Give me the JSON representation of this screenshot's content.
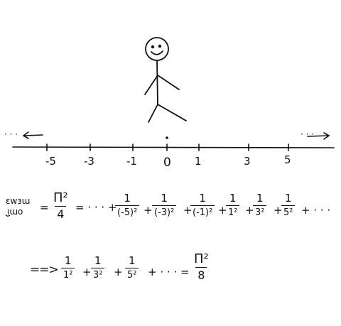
{
  "number_line": {
    "ticks": [
      "-5",
      "-3",
      "-1",
      "0",
      "1",
      "3",
      "5"
    ],
    "left_dots": "· · ·",
    "right_dots": "· · ·"
  },
  "equation1": {
    "label_line1": "ɛwɜɯ",
    "label_line2": "ıɯo",
    "equals": "=",
    "lhs_num": "Π²",
    "lhs_den": "4",
    "ellipsis_start": "= · · · +",
    "terms": [
      {
        "num": "1",
        "den": "(-5)²"
      },
      {
        "num": "1",
        "den": "(-3)²"
      },
      {
        "num": "1",
        "den": "(-1)²"
      },
      {
        "num": "1",
        "den": "1²"
      },
      {
        "num": "1",
        "den": "3²"
      },
      {
        "num": "1",
        "den": "5²"
      }
    ],
    "plus": "+",
    "ellipsis_end": "+ · · ·"
  },
  "equation2": {
    "implies": "==>",
    "terms": [
      {
        "num": "1",
        "den": "1²"
      },
      {
        "num": "1",
        "den": "3²"
      },
      {
        "num": "1",
        "den": "5²"
      }
    ],
    "plus": "+",
    "ellipsis": "+ · · · =",
    "rhs_num": "Π²",
    "rhs_den": "8"
  }
}
